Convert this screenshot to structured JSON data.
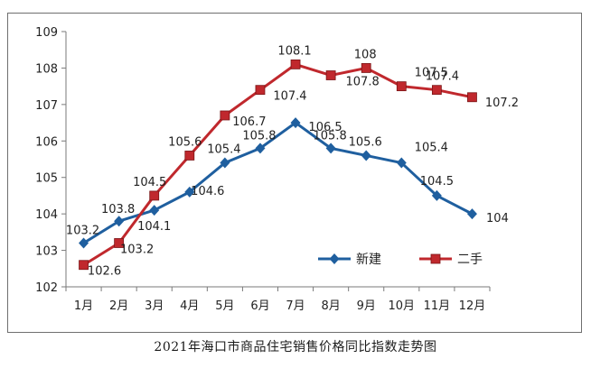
{
  "chart_data": {
    "type": "line",
    "title": "2021年海口市商品住宅销售价格同比指数走势图",
    "xlabel": "",
    "ylabel": "",
    "categories": [
      "1月",
      "2月",
      "3月",
      "4月",
      "5月",
      "6月",
      "7月",
      "8月",
      "9月",
      "10月",
      "11月",
      "12月"
    ],
    "ylim": [
      102,
      109
    ],
    "yticks": [
      102,
      103,
      104,
      105,
      106,
      107,
      108,
      109
    ],
    "grid": false,
    "legend_position": "lower-right",
    "series": [
      {
        "name": "新建",
        "color": "#1f5f9f",
        "marker": "diamond",
        "values": [
          103.2,
          103.8,
          104.1,
          104.6,
          105.4,
          105.8,
          106.5,
          105.8,
          105.6,
          105.4,
          104.5,
          104
        ],
        "labels": [
          "103.2",
          "103.8",
          "104.1",
          "104.6",
          "105.4",
          "105.8",
          "106.5",
          "105.8",
          "105.6",
          "105.4",
          "104.5",
          "104"
        ]
      },
      {
        "name": "二手",
        "color": "#c0282d",
        "marker": "square",
        "values": [
          102.6,
          103.2,
          104.5,
          105.6,
          106.7,
          107.4,
          108.1,
          107.8,
          108,
          107.5,
          107.4,
          107.2
        ],
        "labels": [
          "102.6",
          "103.2",
          "104.5",
          "105.6",
          "106.7",
          "107.4",
          "108.1",
          "107.8",
          "108",
          "107.5",
          "107.4",
          "107.2"
        ]
      }
    ]
  }
}
